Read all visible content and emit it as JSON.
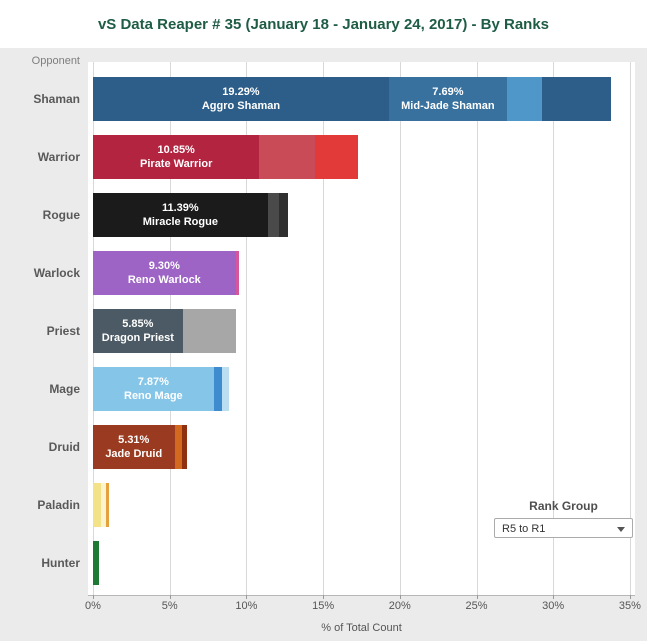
{
  "title": "vS Data Reaper # 35 (January 18 - January 24, 2017) - By Ranks",
  "colors": {
    "title_text": "#1f5c45",
    "panel_bg": "#ebebeb",
    "plot_bg": "#ffffff",
    "gridline": "#d8d8d8",
    "category_label": "#595959",
    "tick_label": "#555555"
  },
  "axis": {
    "row_header": "Opponent",
    "x_title": "% of Total Count",
    "x_ticks": [
      "0%",
      "5%",
      "10%",
      "15%",
      "20%",
      "25%",
      "30%",
      "35%"
    ],
    "x_min": 0,
    "x_max": 35
  },
  "rank_group": {
    "label": "Rank Group",
    "selected": "R5 to R1"
  },
  "chart_data": {
    "type": "bar",
    "orientation": "horizontal",
    "title": "vS Data Reaper # 35 (January 18 - January 24, 2017) - By Ranks",
    "xlabel": "% of Total Count",
    "xlim": [
      0,
      35
    ],
    "grid": true,
    "legend": "none",
    "categories": [
      "Shaman",
      "Warrior",
      "Rogue",
      "Warlock",
      "Priest",
      "Mage",
      "Druid",
      "Paladin",
      "Hunter"
    ],
    "rows": [
      {
        "category": "Shaman",
        "total": 33.78,
        "segments": [
          {
            "name": "Aggro Shaman",
            "pct_label": "19.29%",
            "value": 19.29,
            "color": "#2d5e8a"
          },
          {
            "name": "Mid-Jade Shaman",
            "pct_label": "7.69%",
            "value": 7.69,
            "color": "#38719e"
          },
          {
            "name": "",
            "value": 2.3,
            "color": "#4f97c9"
          },
          {
            "name": "",
            "value": 4.5,
            "color": "#2d5e8a"
          }
        ]
      },
      {
        "category": "Warrior",
        "total": 17.3,
        "segments": [
          {
            "name": "Pirate Warrior",
            "pct_label": "10.85%",
            "value": 10.85,
            "color": "#b32441"
          },
          {
            "name": "",
            "value": 3.65,
            "color": "#c94b58"
          },
          {
            "name": "",
            "value": 2.8,
            "color": "#e23a38"
          }
        ]
      },
      {
        "category": "Rogue",
        "total": 12.69,
        "segments": [
          {
            "name": "Miracle Rogue",
            "pct_label": "11.39%",
            "value": 11.39,
            "color": "#1b1b1b"
          },
          {
            "name": "",
            "value": 0.75,
            "color": "#4a4a4a"
          },
          {
            "name": "",
            "value": 0.55,
            "color": "#2f2f2f"
          }
        ]
      },
      {
        "category": "Warlock",
        "total": 9.55,
        "segments": [
          {
            "name": "Reno Warlock",
            "pct_label": "9.30%",
            "value": 9.3,
            "color": "#9d64c5"
          },
          {
            "name": "",
            "value": 0.25,
            "color": "#d6569e"
          }
        ]
      },
      {
        "category": "Priest",
        "total": 9.35,
        "segments": [
          {
            "name": "Dragon Priest",
            "pct_label": "5.85%",
            "value": 5.85,
            "color": "#4b5a64"
          },
          {
            "name": "",
            "value": 3.5,
            "color": "#a7a7a7"
          }
        ]
      },
      {
        "category": "Mage",
        "total": 8.87,
        "segments": [
          {
            "name": "Reno Mage",
            "pct_label": "7.87%",
            "value": 7.87,
            "color": "#85c5e8"
          },
          {
            "name": "",
            "value": 0.55,
            "color": "#3e8cce"
          },
          {
            "name": "",
            "value": 0.45,
            "color": "#b9ddf1"
          }
        ]
      },
      {
        "category": "Druid",
        "total": 6.11,
        "segments": [
          {
            "name": "Jade Druid",
            "pct_label": "5.31%",
            "value": 5.31,
            "color": "#9a3a20"
          },
          {
            "name": "",
            "value": 0.5,
            "color": "#d2691e"
          },
          {
            "name": "",
            "value": 0.3,
            "color": "#8f3110"
          }
        ]
      },
      {
        "category": "Paladin",
        "total": 1.05,
        "segments": [
          {
            "name": "",
            "value": 0.55,
            "color": "#f3e287"
          },
          {
            "name": "",
            "value": 0.3,
            "color": "#fbf4cf"
          },
          {
            "name": "",
            "value": 0.2,
            "color": "#e5a23c"
          }
        ]
      },
      {
        "category": "Hunter",
        "total": 0.4,
        "segments": [
          {
            "name": "",
            "value": 0.4,
            "color": "#1e7a33"
          }
        ]
      }
    ]
  }
}
